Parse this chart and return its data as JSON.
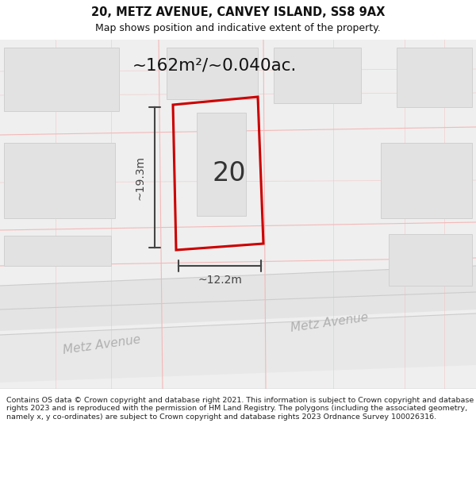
{
  "title_line1": "20, METZ AVENUE, CANVEY ISLAND, SS8 9AX",
  "title_line2": "Map shows position and indicative extent of the property.",
  "area_label": "~162m²/~0.040ac.",
  "property_number": "20",
  "width_label": "~12.2m",
  "height_label": "~19.3m",
  "street_label1": "Metz Avenue",
  "street_label2": "Metz Avenue",
  "footer_text": "Contains OS data © Crown copyright and database right 2021. This information is subject to Crown copyright and database rights 2023 and is reproduced with the permission of HM Land Registry. The polygons (including the associated geometry, namely x, y co-ordinates) are subject to Crown copyright and database rights 2023 Ordnance Survey 100026316.",
  "bg_color": "#f2f2f2",
  "map_bg": "#efefef",
  "building_fill": "#e2e2e2",
  "building_outline": "#d0d0d0",
  "red_line_color": "#cc0000",
  "pink_line_color": "#f5b8b8",
  "dim_line_color": "#444444",
  "title_color": "#111111",
  "footer_color": "#222222",
  "street_text_color": "#b0b0b0",
  "area_text_color": "#111111",
  "white": "#ffffff",
  "road_fill": "#e8e8e8",
  "road_line": "#cccccc"
}
